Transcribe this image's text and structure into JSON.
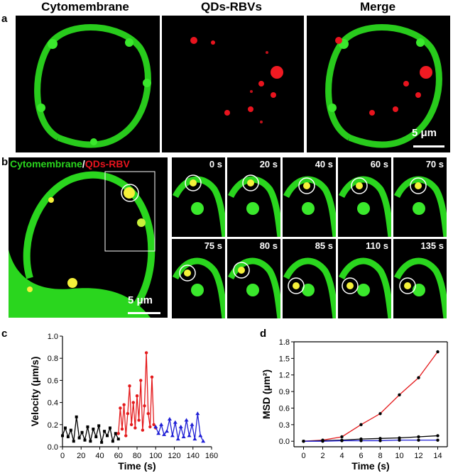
{
  "panels": {
    "a": "a",
    "b": "b",
    "c": "c",
    "d": "d"
  },
  "row_a": {
    "titles": [
      "Cytomembrane",
      "QDs-RBVs",
      "Merge"
    ],
    "scale": "5 μm"
  },
  "row_b": {
    "overlay_label_green": "Cytomembrane",
    "overlay_label_sep": "/",
    "overlay_label_red": "QDs-RBV",
    "scale": "5 μm",
    "frames": [
      "0 s",
      "20 s",
      "40 s",
      "60 s",
      "70 s",
      "75 s",
      "80 s",
      "85 s",
      "110 s",
      "135 s"
    ]
  },
  "colors": {
    "green": "#2ad61e",
    "red": "#e8141e",
    "yellow": "#f5f03a",
    "black_series": "#000000",
    "red_series": "#e41a1c",
    "blue_series": "#1f1fd6"
  },
  "chart_data": [
    {
      "type": "line",
      "ylabel": "Velocity (μm/s)",
      "xlabel": "Time (s)",
      "xlim": [
        0,
        160
      ],
      "ylim": [
        0,
        1.0
      ],
      "xticks": [
        0,
        20,
        40,
        60,
        80,
        100,
        120,
        140,
        160
      ],
      "yticks": [
        0.0,
        0.2,
        0.4,
        0.6,
        0.8,
        1.0
      ],
      "series": [
        {
          "color": "#000000",
          "marker": "square",
          "x": [
            0,
            3,
            6,
            9,
            12,
            15,
            18,
            21,
            24,
            27,
            30,
            33,
            36,
            39,
            42,
            45,
            48,
            51,
            54,
            57,
            60
          ],
          "y": [
            0.1,
            0.17,
            0.09,
            0.15,
            0.05,
            0.27,
            0.08,
            0.13,
            0.06,
            0.18,
            0.05,
            0.16,
            0.09,
            0.19,
            0.04,
            0.14,
            0.1,
            0.17,
            0.05,
            0.12,
            0.07
          ]
        },
        {
          "color": "#e41a1c",
          "marker": "circle",
          "x": [
            60,
            62,
            64,
            66,
            68,
            70,
            72,
            74,
            76,
            78,
            80,
            82,
            84,
            86,
            88,
            90,
            92,
            94,
            96,
            98,
            100
          ],
          "y": [
            0.12,
            0.35,
            0.16,
            0.38,
            0.1,
            0.3,
            0.55,
            0.2,
            0.4,
            0.17,
            0.46,
            0.24,
            0.6,
            0.15,
            0.37,
            0.85,
            0.3,
            0.18,
            0.63,
            0.2,
            0.17
          ]
        },
        {
          "color": "#1f1fd6",
          "marker": "triangle",
          "x": [
            100,
            103,
            106,
            109,
            112,
            115,
            118,
            121,
            124,
            127,
            130,
            133,
            136,
            139,
            142,
            145,
            148,
            151
          ],
          "y": [
            0.18,
            0.12,
            0.2,
            0.11,
            0.14,
            0.25,
            0.1,
            0.22,
            0.07,
            0.18,
            0.09,
            0.24,
            0.1,
            0.2,
            0.07,
            0.3,
            0.1,
            0.05
          ]
        }
      ]
    },
    {
      "type": "line",
      "ylabel": "MSD (μm²)",
      "xlabel": "Time (s)",
      "xlim": [
        -1,
        15
      ],
      "ylim": [
        -0.1,
        1.8
      ],
      "xticks": [
        0,
        2,
        4,
        6,
        8,
        10,
        12,
        14
      ],
      "yticks": [
        0.0,
        0.3,
        0.6,
        0.9,
        1.2,
        1.5,
        1.8
      ],
      "series": [
        {
          "color": "#e41a1c",
          "x": [
            0,
            2,
            4,
            6,
            8,
            10,
            12,
            14
          ],
          "y": [
            0.0,
            0.02,
            0.08,
            0.3,
            0.5,
            0.84,
            1.15,
            1.62
          ]
        },
        {
          "color": "#000000",
          "x": [
            0,
            2,
            4,
            6,
            8,
            10,
            12,
            14
          ],
          "y": [
            0.0,
            0.01,
            0.02,
            0.04,
            0.05,
            0.06,
            0.08,
            0.1
          ]
        },
        {
          "color": "#1f1fd6",
          "x": [
            0,
            2,
            4,
            6,
            8,
            10,
            12,
            14
          ],
          "y": [
            0.0,
            0.0,
            0.01,
            0.01,
            0.01,
            0.02,
            0.02,
            0.02
          ]
        }
      ]
    }
  ]
}
